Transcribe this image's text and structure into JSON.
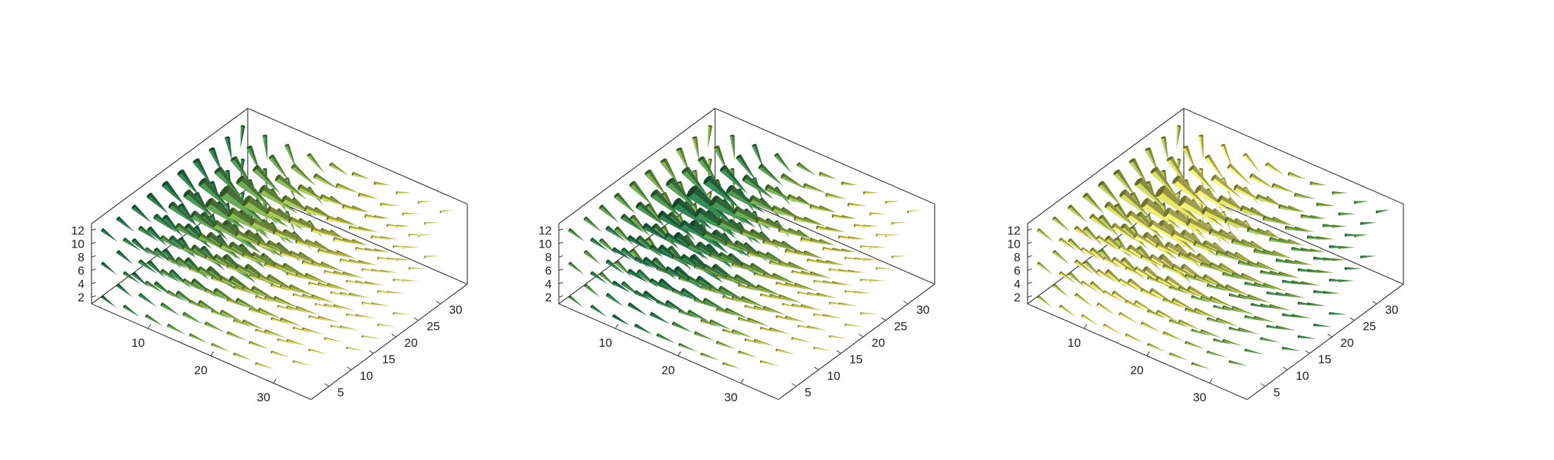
{
  "chart_data": [
    {
      "type": "3d-cone-plot",
      "colormap": [
        "#0b4b3a",
        "#2f7d4d",
        "#7ea64a",
        "#c9c95a",
        "#f3f09a"
      ],
      "x_ticks": [
        10,
        20,
        30
      ],
      "y_ticks": [
        5,
        10,
        15,
        20,
        25,
        30
      ],
      "z_ticks": [
        2,
        4,
        6,
        8,
        10,
        12
      ],
      "xlim": [
        1,
        36
      ],
      "ylim": [
        1,
        36
      ],
      "zlim": [
        1,
        13
      ],
      "grid": false,
      "color_gradient": "dark-near-corner",
      "cone_slices_z": [
        2,
        7,
        12
      ]
    },
    {
      "type": "3d-cone-plot",
      "colormap": [
        "#0b4b3a",
        "#2f7d4d",
        "#7ea64a",
        "#c9c95a",
        "#f3f09a"
      ],
      "x_ticks": [
        10,
        20,
        30
      ],
      "y_ticks": [
        5,
        10,
        15,
        20,
        25,
        30
      ],
      "z_ticks": [
        2,
        4,
        6,
        8,
        10,
        12
      ],
      "xlim": [
        1,
        36
      ],
      "ylim": [
        1,
        36
      ],
      "zlim": [
        1,
        13
      ],
      "grid": false,
      "color_gradient": "dark-center",
      "cone_slices_z": [
        2,
        7,
        12
      ]
    },
    {
      "type": "3d-cone-plot",
      "colormap": [
        "#0b4b3a",
        "#2f7d4d",
        "#7ea64a",
        "#c9c95a",
        "#f3f09a"
      ],
      "x_ticks": [
        10,
        20,
        30
      ],
      "y_ticks": [
        5,
        10,
        15,
        20,
        25,
        30
      ],
      "z_ticks": [
        2,
        4,
        6,
        8,
        10,
        12
      ],
      "xlim": [
        1,
        36
      ],
      "ylim": [
        1,
        36
      ],
      "zlim": [
        1,
        13
      ],
      "grid": false,
      "color_gradient": "light-center",
      "cone_slices_z": [
        2,
        7,
        12
      ]
    }
  ]
}
